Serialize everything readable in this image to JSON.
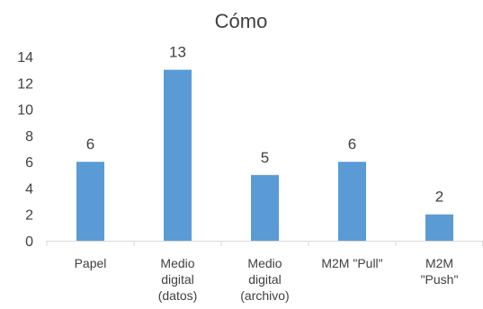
{
  "chart_data": {
    "type": "bar",
    "title": "Cómo",
    "categories": [
      [
        "Papel"
      ],
      [
        "Medio",
        "digital",
        "(datos)"
      ],
      [
        "Medio",
        "digital",
        "(archivo)"
      ],
      [
        "M2M \"Pull\""
      ],
      [
        "M2M",
        "\"Push\""
      ]
    ],
    "values": [
      6,
      13,
      5,
      6,
      2
    ],
    "data_labels": [
      "6",
      "13",
      "5",
      "6",
      "2"
    ],
    "ylim": [
      0,
      14
    ],
    "yticks": [
      "0",
      "2",
      "4",
      "6",
      "8",
      "10",
      "12",
      "14"
    ],
    "xlabel": "",
    "ylabel": "",
    "bar_color": "#5b9bd5",
    "axis_color": "#d9d9d9",
    "text_color": "#404040",
    "grid": false,
    "legend": "none"
  }
}
